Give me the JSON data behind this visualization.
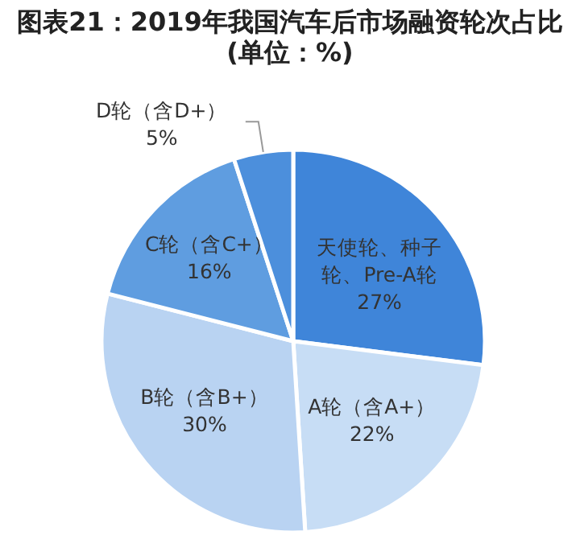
{
  "chart_data": {
    "type": "pie",
    "title": "图表21：2019年我国汽车后市场融资轮次占比(单位：%)",
    "categories": [
      "天使轮、种子轮、Pre-A轮",
      "A轮（含A+）",
      "B轮（含B+）",
      "C轮（含C+）",
      "D轮（含D+）"
    ],
    "values": [
      27,
      22,
      30,
      16,
      5
    ],
    "colors": [
      "#3f85d9",
      "#c7ddf5",
      "#b9d3f2",
      "#5f9de0",
      "#4c8fdc"
    ],
    "value_labels": [
      "27%",
      "22%",
      "30%",
      "16%",
      "5%"
    ]
  }
}
